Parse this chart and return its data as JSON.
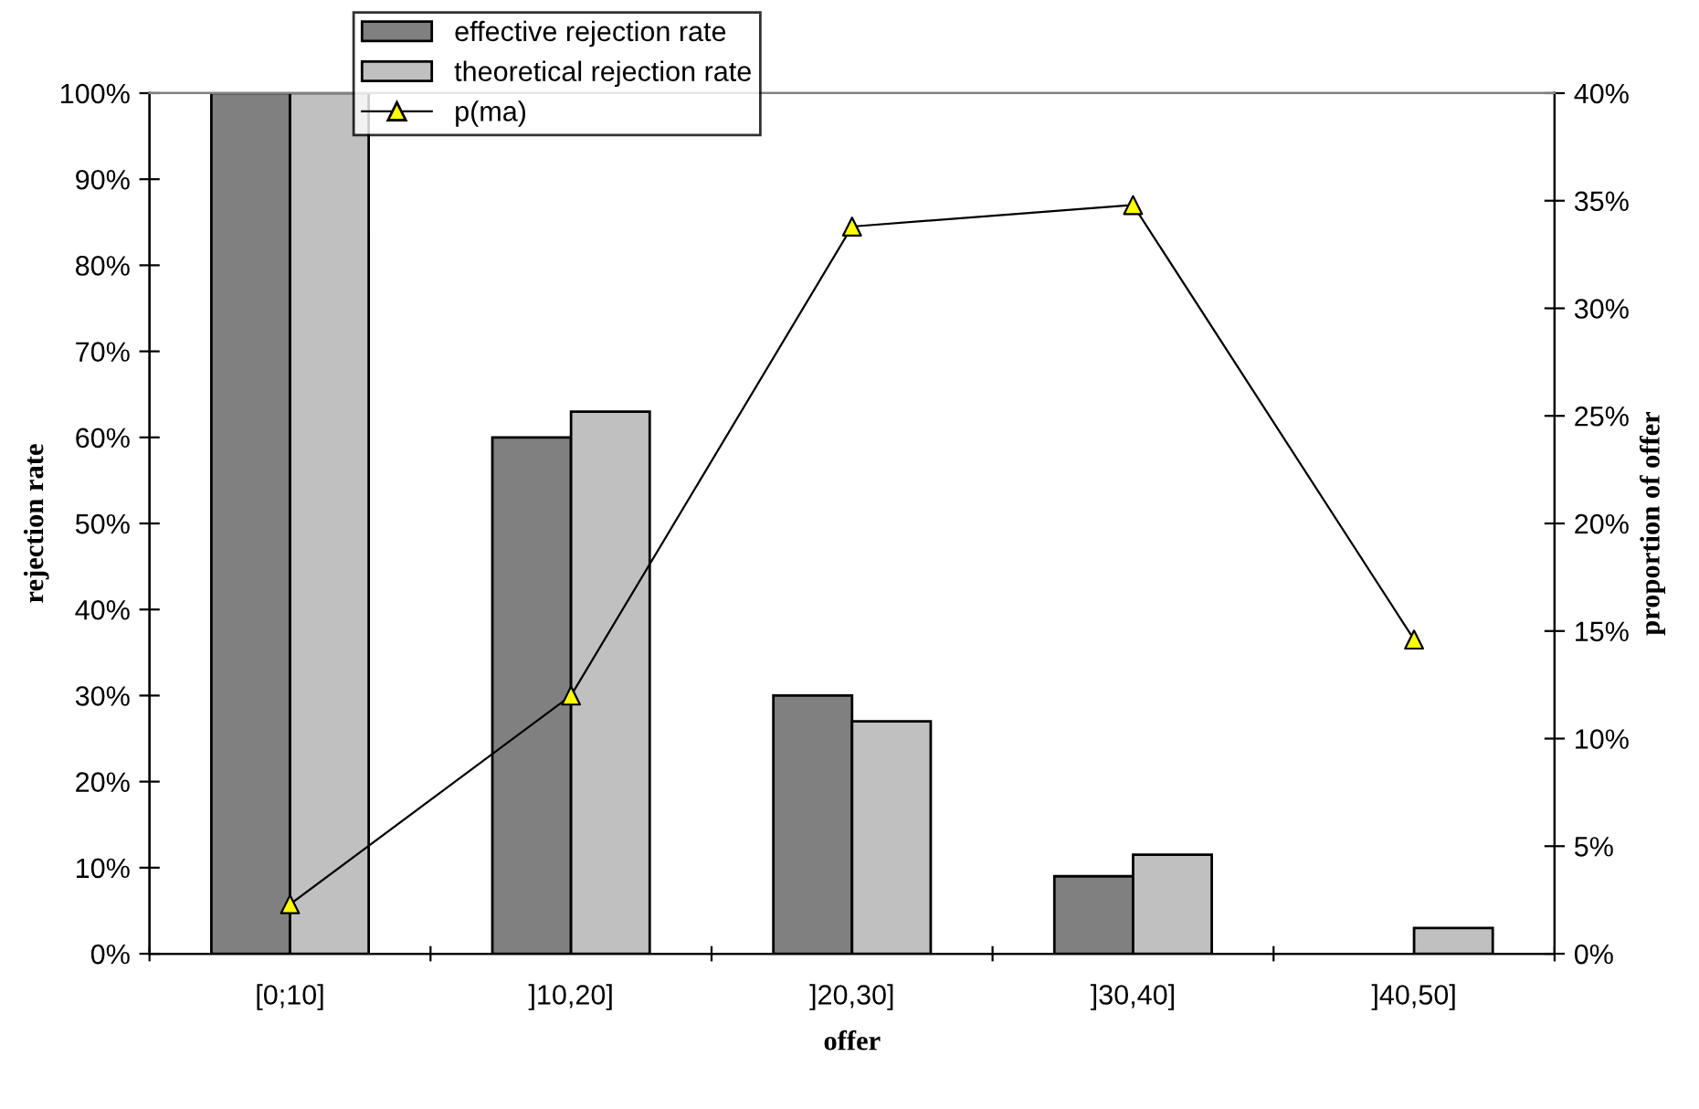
{
  "chart_data": {
    "type": "bar",
    "xlabel": "offer",
    "ylabel": "rejection rate",
    "y2label": "proportion of offer",
    "categories": [
      "[0;10]",
      "]10,20]",
      "]20,30]",
      "]30,40]",
      "]40,50]"
    ],
    "series": [
      {
        "name": "effective rejection rate",
        "color": "#808080",
        "values": [
          100,
          60,
          30,
          9,
          null
        ]
      },
      {
        "name": "theoretical rejection rate",
        "color": "#c0c0c0",
        "values": [
          100,
          63,
          27,
          11.5,
          3
        ]
      },
      {
        "name": "p(ma)",
        "type": "line",
        "axis": "y2",
        "color": "#000000",
        "marker": "triangle",
        "colors": [
          "#ffff00",
          "#ffff00",
          "#ffff00",
          "#ffff00",
          "#ffff00"
        ],
        "values": [
          2.3,
          12,
          33.8,
          34.8,
          14.6
        ]
      }
    ],
    "ylim": [
      0,
      100
    ],
    "yticks": [
      {
        "value": 0,
        "label": "0%"
      },
      {
        "value": 10,
        "label": "10%"
      },
      {
        "value": 20,
        "label": "20%"
      },
      {
        "value": 30,
        "label": "30%"
      },
      {
        "value": 40,
        "label": "40%"
      },
      {
        "value": 50,
        "label": "50%"
      },
      {
        "value": 60,
        "label": "60%"
      },
      {
        "value": 70,
        "label": "70%"
      },
      {
        "value": 80,
        "label": "80%"
      },
      {
        "value": 90,
        "label": "90%"
      },
      {
        "value": 100,
        "label": "100%"
      }
    ],
    "y2lim": [
      0,
      40
    ],
    "y2ticks": [
      {
        "value": 0,
        "label": "0%"
      },
      {
        "value": 5,
        "label": "5%"
      },
      {
        "value": 10,
        "label": "10%"
      },
      {
        "value": 15,
        "label": "15%"
      },
      {
        "value": 20,
        "label": "20%"
      },
      {
        "value": 25,
        "label": "25%"
      },
      {
        "value": 30,
        "label": "30%"
      },
      {
        "value": 35,
        "label": "35%"
      },
      {
        "value": 40,
        "label": "40%"
      }
    ],
    "grid": false,
    "legend": "top"
  }
}
